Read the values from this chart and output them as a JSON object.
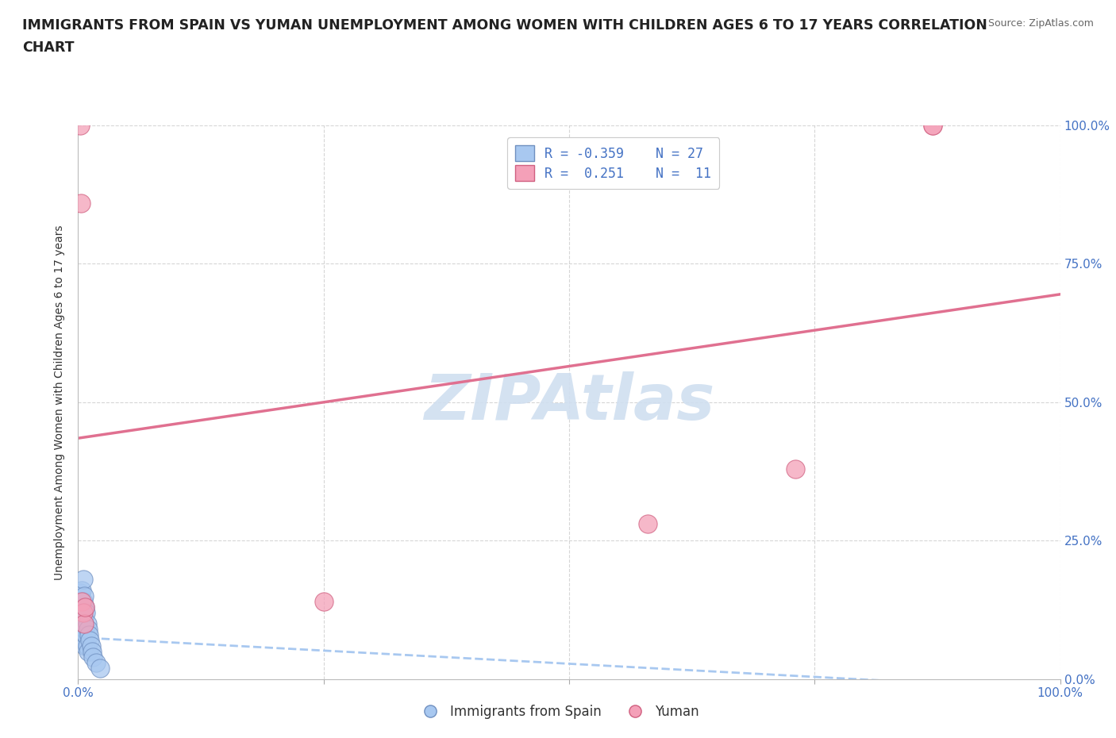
{
  "title_line1": "IMMIGRANTS FROM SPAIN VS YUMAN UNEMPLOYMENT AMONG WOMEN WITH CHILDREN AGES 6 TO 17 YEARS CORRELATION",
  "title_line2": "CHART",
  "source": "Source: ZipAtlas.com",
  "ylabel": "Unemployment Among Women with Children Ages 6 to 17 years",
  "xlim": [
    0.0,
    1.0
  ],
  "ylim": [
    0.0,
    1.0
  ],
  "xticks": [
    0.0,
    0.25,
    0.5,
    0.75,
    1.0
  ],
  "yticks": [
    0.0,
    0.25,
    0.5,
    0.75,
    1.0
  ],
  "xtick_labels": [
    "0.0%",
    "",
    "",
    "",
    "100.0%"
  ],
  "ytick_labels": [
    "0.0%",
    "25.0%",
    "50.0%",
    "75.0%",
    "100.0%"
  ],
  "blue_color": "#A8C8F0",
  "pink_color": "#F4A0B8",
  "blue_edge": "#7090C0",
  "pink_edge": "#D06080",
  "trend_blue_color": "#A8C8F0",
  "trend_pink_color": "#E07090",
  "background": "#FFFFFF",
  "grid_color": "#CCCCCC",
  "watermark": "ZIPAtlas",
  "watermark_color": "#D0DFF0",
  "legend_r_blue": "R = -0.359",
  "legend_n_blue": "N = 27",
  "legend_r_pink": "R =  0.251",
  "legend_n_pink": "N =  11",
  "blue_scatter_x": [
    0.002,
    0.003,
    0.003,
    0.004,
    0.004,
    0.005,
    0.005,
    0.005,
    0.006,
    0.006,
    0.006,
    0.007,
    0.007,
    0.007,
    0.008,
    0.008,
    0.009,
    0.009,
    0.01,
    0.01,
    0.011,
    0.012,
    0.013,
    0.014,
    0.015,
    0.018,
    0.022
  ],
  "blue_scatter_y": [
    0.155,
    0.13,
    0.1,
    0.16,
    0.12,
    0.18,
    0.14,
    0.09,
    0.15,
    0.11,
    0.07,
    0.13,
    0.09,
    0.06,
    0.12,
    0.08,
    0.1,
    0.06,
    0.09,
    0.05,
    0.08,
    0.07,
    0.06,
    0.05,
    0.04,
    0.03,
    0.02
  ],
  "pink_scatter_x": [
    0.002,
    0.003,
    0.004,
    0.005,
    0.006,
    0.007,
    0.58,
    0.73,
    0.87,
    0.87,
    0.25
  ],
  "pink_scatter_y": [
    1.0,
    0.86,
    0.14,
    0.12,
    0.1,
    0.13,
    0.28,
    0.38,
    1.0,
    1.0,
    0.14
  ],
  "blue_trend_x": [
    0.0,
    1.0
  ],
  "blue_trend_y": [
    0.075,
    -0.02
  ],
  "pink_trend_x": [
    0.0,
    1.0
  ],
  "pink_trend_y": [
    0.435,
    0.695
  ],
  "bottom_legend_labels": [
    "Immigrants from Spain",
    "Yuman"
  ],
  "tick_color": "#4472C4",
  "label_color": "#333333"
}
